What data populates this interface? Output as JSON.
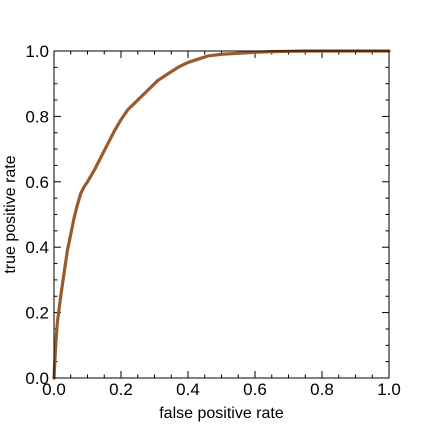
{
  "chart_data": {
    "type": "line",
    "title": "",
    "xlabel": "false positive rate",
    "ylabel": "true positive rate",
    "xlim": [
      0.0,
      1.0
    ],
    "ylim": [
      0.0,
      1.0
    ],
    "x_ticks": [
      "0.0",
      "0.2",
      "0.4",
      "0.6",
      "0.8",
      "1.0"
    ],
    "y_ticks": [
      "0.0",
      "0.2",
      "0.4",
      "0.6",
      "0.8",
      "1.0"
    ],
    "grid": false,
    "legend": "none",
    "series": [
      {
        "color": "#9b5a2a",
        "x": [
          0.0,
          0.005,
          0.01,
          0.02,
          0.03,
          0.04,
          0.05,
          0.06,
          0.07,
          0.08,
          0.09,
          0.1,
          0.12,
          0.14,
          0.16,
          0.18,
          0.2,
          0.22,
          0.25,
          0.28,
          0.31,
          0.34,
          0.37,
          0.4,
          0.43,
          0.46,
          0.5,
          0.55,
          0.6,
          0.65,
          0.7,
          0.75,
          0.8,
          0.85,
          0.9,
          0.95,
          1.0
        ],
        "y": [
          0.0,
          0.1,
          0.17,
          0.25,
          0.32,
          0.39,
          0.44,
          0.49,
          0.53,
          0.565,
          0.585,
          0.6,
          0.635,
          0.675,
          0.715,
          0.755,
          0.79,
          0.82,
          0.85,
          0.88,
          0.91,
          0.93,
          0.95,
          0.965,
          0.975,
          0.985,
          0.99,
          0.993,
          0.996,
          0.998,
          0.999,
          1.0,
          1.0,
          1.0,
          1.0,
          1.0,
          1.0
        ]
      }
    ]
  }
}
